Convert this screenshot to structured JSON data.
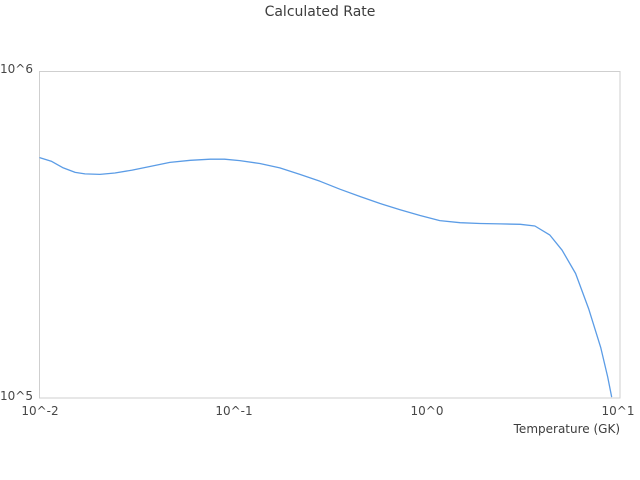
{
  "title": "Calculated Rate",
  "chart_data": {
    "type": "line",
    "title": "Calculated Rate",
    "xlabel": "Temperature (GK)",
    "ylabel": "",
    "x_scale": "log",
    "y_scale": "log",
    "xlim": [
      0.01,
      10
    ],
    "ylim": [
      100000,
      1000000
    ],
    "grid": false,
    "legend": null,
    "x_ticks": [
      {
        "value": 0.01,
        "label": "10^-2"
      },
      {
        "value": 0.1,
        "label": "10^-1"
      },
      {
        "value": 1,
        "label": "10^0"
      },
      {
        "value": 10,
        "label": "10^1"
      }
    ],
    "y_ticks": [
      {
        "value": 1000000,
        "label": "10^6"
      },
      {
        "value": 100000,
        "label": "10^5"
      }
    ],
    "colors": {
      "line": "#5b9ce6",
      "border": "#cfcfcf",
      "text": "#3d3d3d"
    },
    "series": [
      {
        "name": "calculated-rate",
        "x": [
          0.01,
          0.0115,
          0.0132,
          0.0152,
          0.0171,
          0.0204,
          0.0244,
          0.03,
          0.037,
          0.047,
          0.06,
          0.076,
          0.09,
          0.108,
          0.137,
          0.174,
          0.221,
          0.281,
          0.356,
          0.452,
          0.574,
          0.729,
          0.925,
          1.17,
          1.49,
          1.89,
          2.4,
          3.05,
          3.63,
          4.34,
          5.02,
          5.89,
          6.88,
          7.95,
          8.64,
          9.05
        ],
        "y": [
          546000,
          532000,
          508000,
          492000,
          487000,
          485000,
          490000,
          500000,
          513000,
          528000,
          536000,
          540000,
          540000,
          535000,
          524000,
          508000,
          485000,
          462000,
          437000,
          415000,
          395000,
          378000,
          363000,
          350000,
          345000,
          343000,
          342000,
          341000,
          337000,
          316000,
          284000,
          241000,
          188000,
          143000,
          116000,
          101000
        ]
      }
    ]
  }
}
